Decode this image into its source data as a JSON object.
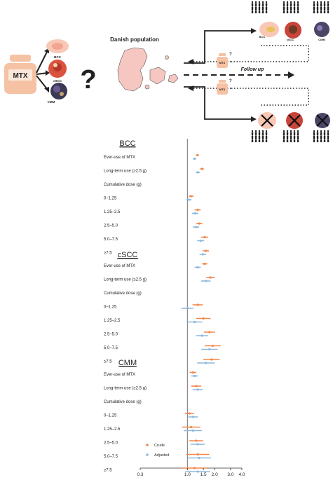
{
  "schematic": {
    "drug_label": "MTX",
    "question_mark": "?",
    "population_title": "Danish population",
    "follow_up_label": "Follow up",
    "cancer_labels": [
      "BCC",
      "cSCC",
      "CMM"
    ],
    "small_drug_label": "MTX",
    "small_question": "?"
  },
  "chart_data": {
    "type": "scatter",
    "subtype": "forest-plot",
    "x_scale": "log",
    "xlim": [
      0.3,
      4.0
    ],
    "reference_line": 1.0,
    "x_ticks": [
      "0.3",
      "1.0",
      "1.5",
      "2.0",
      "3.0",
      "4.0"
    ],
    "x_tick_values": [
      0.3,
      1.0,
      1.5,
      2.0,
      3.0,
      4.0
    ],
    "legend": {
      "placement": "bottom-left",
      "entries": [
        "Crude",
        "Adjusted"
      ]
    },
    "colors": {
      "crude": "#f4874b",
      "adjusted": "#8eb9dd",
      "ref_line": "#8a8a8a"
    },
    "groups": [
      {
        "title": "BCC",
        "rows": [
          {
            "label": "Ever-use of MTX",
            "crude": [
              1.29,
              1.24,
              1.34
            ],
            "adjusted": [
              1.2,
              1.15,
              1.25
            ]
          },
          {
            "label": "Long-term use (≥2.5 g)",
            "crude": [
              1.45,
              1.38,
              1.52
            ],
            "adjusted": [
              1.3,
              1.23,
              1.37
            ]
          },
          {
            "label": "Cumulative dose (g)",
            "crude": null,
            "adjusted": null
          },
          {
            "label": "0–1.25",
            "crude": [
              1.1,
              1.03,
              1.17
            ],
            "adjusted": [
              1.04,
              0.97,
              1.11
            ]
          },
          {
            "label": "1.25–2.5",
            "crude": [
              1.3,
              1.2,
              1.4
            ],
            "adjusted": [
              1.22,
              1.12,
              1.32
            ]
          },
          {
            "label": "2.5–5.0",
            "crude": [
              1.35,
              1.25,
              1.46
            ],
            "adjusted": [
              1.25,
              1.15,
              1.35
            ]
          },
          {
            "label": "5.0–7.5",
            "crude": [
              1.55,
              1.42,
              1.69
            ],
            "adjusted": [
              1.4,
              1.28,
              1.53
            ]
          },
          {
            "label": "≥7.5",
            "crude": [
              1.6,
              1.48,
              1.73
            ],
            "adjusted": [
              1.48,
              1.36,
              1.61
            ]
          }
        ]
      },
      {
        "title": "cSCC",
        "rows": [
          {
            "label": "Ever-use of MTX",
            "crude": [
              1.55,
              1.45,
              1.66
            ],
            "adjusted": [
              1.3,
              1.2,
              1.4
            ]
          },
          {
            "label": "Long-term use (≥2.5 g)",
            "crude": [
              1.8,
              1.62,
              2.0
            ],
            "adjusted": [
              1.6,
              1.42,
              1.8
            ]
          },
          {
            "label": "Cumulative dose (g)",
            "crude": null,
            "adjusted": null
          },
          {
            "label": "0–1.25",
            "crude": [
              1.3,
              1.14,
              1.48
            ],
            "adjusted": [
              1.0,
              0.86,
              1.16
            ]
          },
          {
            "label": "1.25–2.5",
            "crude": [
              1.5,
              1.25,
              1.8
            ],
            "adjusted": [
              1.2,
              0.98,
              1.46
            ]
          },
          {
            "label": "2.5–5.0",
            "crude": [
              1.75,
              1.52,
              2.02
            ],
            "adjusted": [
              1.45,
              1.24,
              1.7
            ]
          },
          {
            "label": "5.0–7.5",
            "crude": [
              1.9,
              1.55,
              2.33
            ],
            "adjusted": [
              1.75,
              1.42,
              2.16
            ]
          },
          {
            "label": "≥7.5",
            "crude": [
              1.85,
              1.5,
              2.28
            ],
            "adjusted": [
              1.6,
              1.28,
              2.0
            ]
          }
        ]
      },
      {
        "title": "CMM",
        "rows": [
          {
            "label": "Ever-use of MTX",
            "crude": [
              1.15,
              1.06,
              1.25
            ],
            "adjusted": [
              1.2,
              1.1,
              1.31
            ]
          },
          {
            "label": "Long-term use (≥2.5 g)",
            "crude": [
              1.25,
              1.1,
              1.42
            ],
            "adjusted": [
              1.3,
              1.14,
              1.48
            ]
          },
          {
            "label": "Cumulative dose (g)",
            "crude": null,
            "adjusted": null
          },
          {
            "label": "0–1.25",
            "crude": [
              1.05,
              0.94,
              1.18
            ],
            "adjusted": [
              1.15,
              1.02,
              1.3
            ]
          },
          {
            "label": "1.25–2.5",
            "crude": [
              1.1,
              0.87,
              1.39
            ],
            "adjusted": [
              1.15,
              0.91,
              1.45
            ]
          },
          {
            "label": "2.5–5.0",
            "crude": [
              1.25,
              1.05,
              1.49
            ],
            "adjusted": [
              1.3,
              1.08,
              1.56
            ]
          },
          {
            "label": "5.0–7.5",
            "crude": [
              1.3,
              0.97,
              1.74
            ],
            "adjusted": [
              1.35,
              1.0,
              1.82
            ]
          },
          {
            "label": "≥7.5",
            "crude": [
              1.2,
              0.88,
              1.64
            ],
            "adjusted": [
              1.3,
              0.95,
              1.78
            ]
          }
        ]
      }
    ]
  }
}
